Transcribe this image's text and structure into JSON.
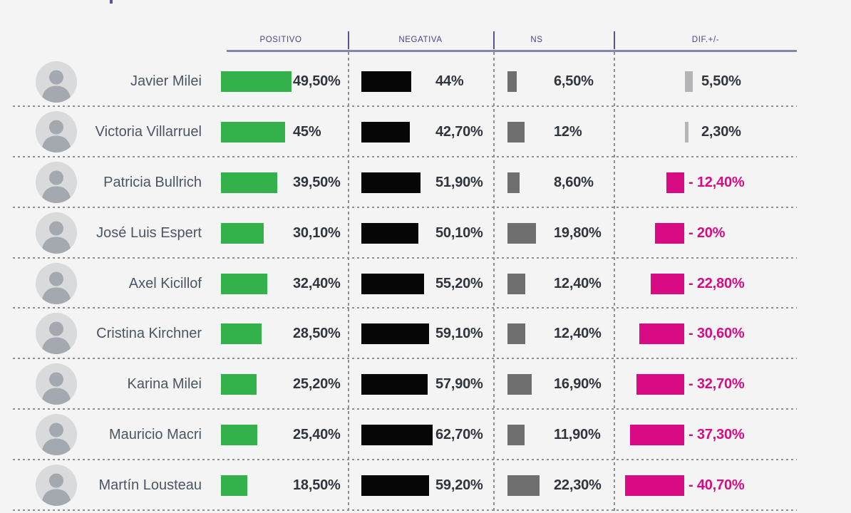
{
  "title_fragment": "cropped page title (only a tiny descender visible at top edge)",
  "header": {
    "columns": [
      "POSITIVO",
      "NEGATIVA",
      "NS",
      "DIF.+/-"
    ]
  },
  "colors": {
    "bg": "#f4f4f5",
    "green": "#33b14b",
    "black": "#060606",
    "nsgray": "#6f6f6f",
    "difgray": "#b4b4b6",
    "pink": "#d90b84",
    "headtext": "#4c4187",
    "tick": "#5b5198",
    "underline": "#8487ad",
    "name": "#4b5563",
    "value": "#30353d",
    "dash": "#8f8f8f"
  },
  "rows": [
    {
      "name": "Javier Milei",
      "positivo": 49.5,
      "positivo_label": "49,50%",
      "negativa": 44,
      "negativa_label": "44%",
      "ns": 6.5,
      "ns_label": "6,50%",
      "dif": 5.5,
      "dif_label": "5,50%"
    },
    {
      "name": "Victoria Villarruel",
      "positivo": 45,
      "positivo_label": "45%",
      "negativa": 42.7,
      "negativa_label": "42,70%",
      "ns": 12,
      "ns_label": "12%",
      "dif": 2.3,
      "dif_label": "2,30%"
    },
    {
      "name": "Patricia Bullrich",
      "positivo": 39.5,
      "positivo_label": "39,50%",
      "negativa": 51.9,
      "negativa_label": "51,90%",
      "ns": 8.6,
      "ns_label": "8,60%",
      "dif": -12.4,
      "dif_label": "- 12,40%"
    },
    {
      "name": "José Luis Espert",
      "positivo": 30.1,
      "positivo_label": "30,10%",
      "negativa": 50.1,
      "negativa_label": "50,10%",
      "ns": 19.8,
      "ns_label": "19,80%",
      "dif": -20,
      "dif_label": "- 20%"
    },
    {
      "name": "Axel Kicillof",
      "positivo": 32.4,
      "positivo_label": "32,40%",
      "negativa": 55.2,
      "negativa_label": "55,20%",
      "ns": 12.4,
      "ns_label": "12,40%",
      "dif": -22.8,
      "dif_label": "- 22,80%"
    },
    {
      "name": "Cristina Kirchner",
      "positivo": 28.5,
      "positivo_label": "28,50%",
      "negativa": 59.1,
      "negativa_label": "59,10%",
      "ns": 12.4,
      "ns_label": "12,40%",
      "dif": -30.6,
      "dif_label": "- 30,60%"
    },
    {
      "name": "Karina Milei",
      "positivo": 25.2,
      "positivo_label": "25,20%",
      "negativa": 57.9,
      "negativa_label": "57,90%",
      "ns": 16.9,
      "ns_label": "16,90%",
      "dif": -32.7,
      "dif_label": "- 32,70%"
    },
    {
      "name": "Mauricio Macri",
      "positivo": 25.4,
      "positivo_label": "25,40%",
      "negativa": 62.7,
      "negativa_label": "62,70%",
      "ns": 11.9,
      "ns_label": "11,90%",
      "dif": -37.3,
      "dif_label": "- 37,30%"
    },
    {
      "name": "Martín Lousteau",
      "positivo": 18.5,
      "positivo_label": "18,50%",
      "negativa": 59.2,
      "negativa_label": "59,20%",
      "ns": 22.3,
      "ns_label": "22,30%",
      "dif": -40.7,
      "dif_label": "- 40,70%"
    }
  ],
  "chart_data": {
    "type": "bar",
    "orientation": "horizontal",
    "categories": [
      "Javier Milei",
      "Victoria Villarruel",
      "Patricia Bullrich",
      "José Luis Espert",
      "Axel Kicillof",
      "Cristina Kirchner",
      "Karina Milei",
      "Mauricio Macri",
      "Martín Lousteau"
    ],
    "series": [
      {
        "name": "POSITIVO",
        "color": "#33b14b",
        "values": [
          49.5,
          45,
          39.5,
          30.1,
          32.4,
          28.5,
          25.2,
          25.4,
          18.5
        ],
        "labels": [
          "49,50%",
          "45%",
          "39,50%",
          "30,10%",
          "32,40%",
          "28,50%",
          "25,20%",
          "25,40%",
          "18,50%"
        ]
      },
      {
        "name": "NEGATIVA",
        "color": "#060606",
        "values": [
          44,
          42.7,
          51.9,
          50.1,
          55.2,
          59.1,
          57.9,
          62.7,
          59.2
        ],
        "labels": [
          "44%",
          "42,70%",
          "51,90%",
          "50,10%",
          "55,20%",
          "59,10%",
          "57,90%",
          "62,70%",
          "59,20%"
        ]
      },
      {
        "name": "NS",
        "color": "#6f6f6f",
        "values": [
          6.5,
          12,
          8.6,
          19.8,
          12.4,
          12.4,
          16.9,
          11.9,
          22.3
        ],
        "labels": [
          "6,50%",
          "12%",
          "8,60%",
          "19,80%",
          "12,40%",
          "12,40%",
          "16,90%",
          "11,90%",
          "22,30%"
        ]
      },
      {
        "name": "DIF.+/-",
        "color_positive": "#b4b4b6",
        "color_negative": "#d90b84",
        "values": [
          5.5,
          2.3,
          -12.4,
          -20,
          -22.8,
          -30.6,
          -32.7,
          -37.3,
          -40.7
        ],
        "labels": [
          "5,50%",
          "2,30%",
          "- 12,40%",
          "- 20%",
          "- 22,80%",
          "- 30,60%",
          "- 32,70%",
          "- 37,30%",
          "- 40,70%"
        ]
      }
    ],
    "layout_hints": {
      "diverging_zero_axis_column": "DIF.+/-",
      "row_separators": "dashed",
      "column_separators": "dashed",
      "legend": "none",
      "gridlines": "off"
    }
  }
}
